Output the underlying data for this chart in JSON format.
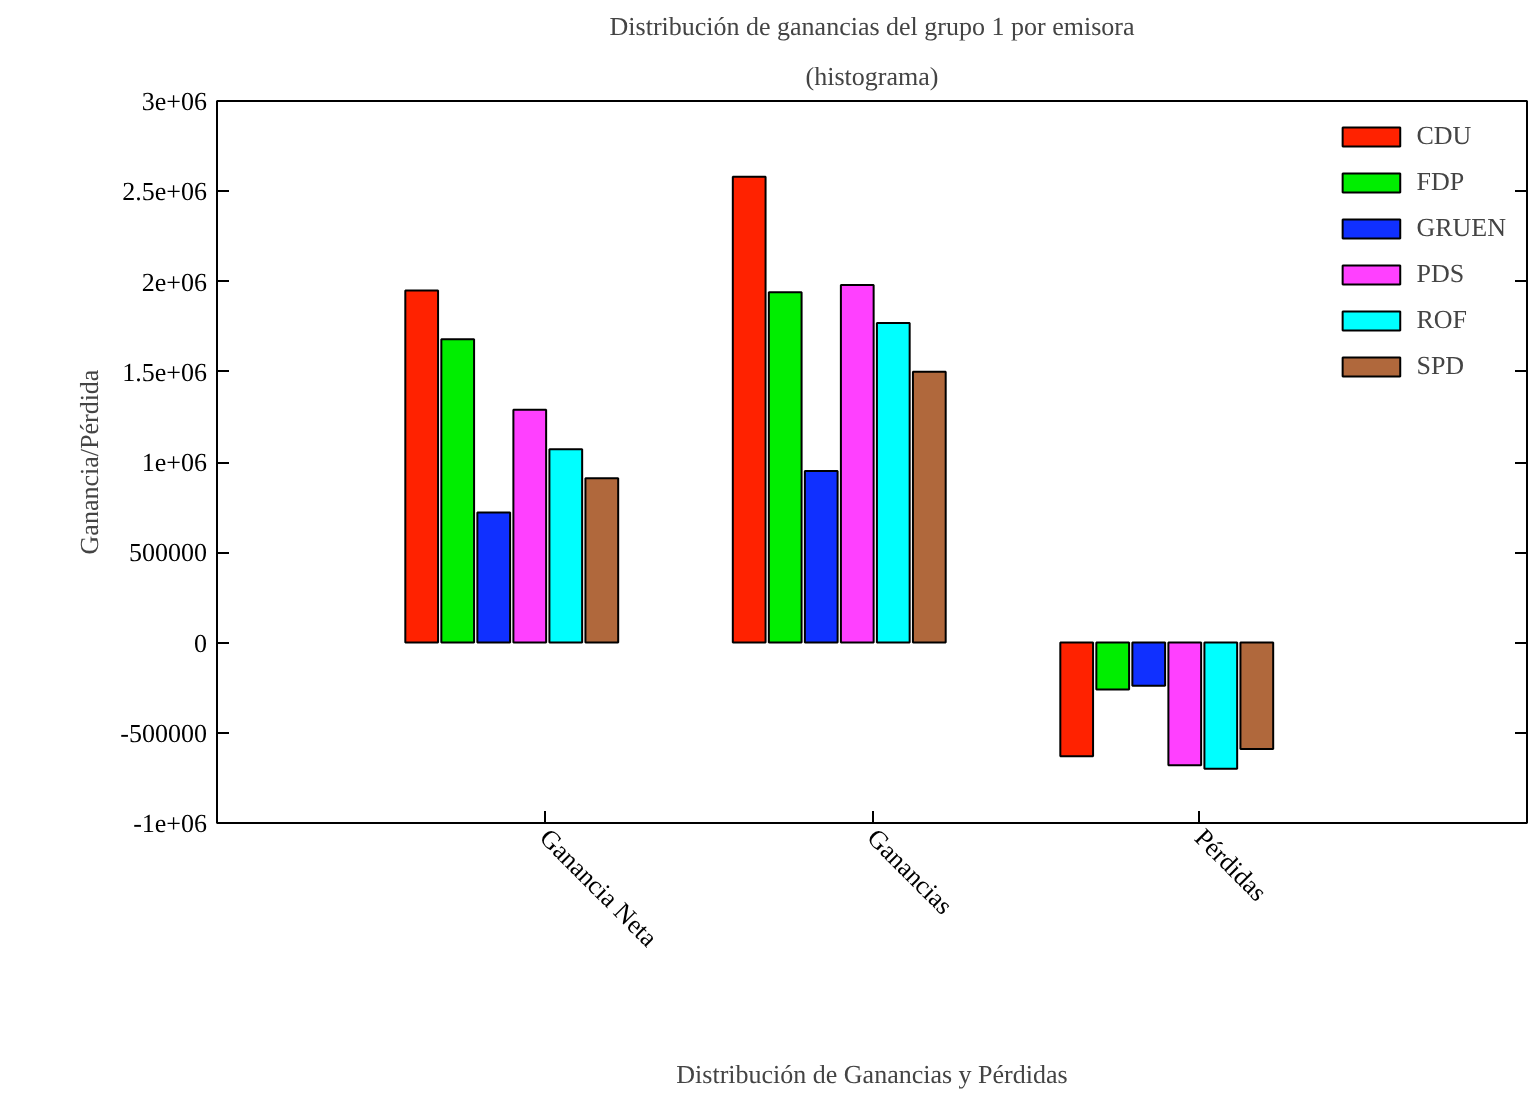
{
  "chart_data": {
    "type": "bar",
    "title": "Distribución de ganancias del grupo 1 por emisora",
    "subtitle": "(histograma)",
    "xlabel": "Distribución de Ganancias y Pérdidas",
    "ylabel": "Ganancia/Pérdida",
    "categories": [
      "Ganancia Neta",
      "Ganancias",
      "Pérdidas"
    ],
    "series": [
      {
        "name": "CDU",
        "color": "#ff2200",
        "values": [
          1950000,
          2580000,
          -630000
        ]
      },
      {
        "name": "FDP",
        "color": "#00ee00",
        "values": [
          1680000,
          1940000,
          -260000
        ]
      },
      {
        "name": "GRUEN",
        "color": "#1030ff",
        "values": [
          720000,
          950000,
          -240000
        ]
      },
      {
        "name": "PDS",
        "color": "#ff40ff",
        "values": [
          1290000,
          1980000,
          -680000
        ]
      },
      {
        "name": "ROF",
        "color": "#00ffff",
        "values": [
          1070000,
          1770000,
          -700000
        ]
      },
      {
        "name": "SPD",
        "color": "#b0683c",
        "values": [
          910000,
          1500000,
          -590000
        ]
      }
    ],
    "ylim": [
      -1000000,
      3000000
    ],
    "yticks": [
      {
        "value": -1000000,
        "label": "-1e+06"
      },
      -500000,
      0,
      500000,
      {
        "value": 1000000,
        "label": "1e+06"
      },
      {
        "value": 1500000,
        "label": "1.5e+06"
      },
      {
        "value": 2000000,
        "label": "2e+06"
      },
      {
        "value": 2500000,
        "label": "2.5e+06"
      },
      {
        "value": 3000000,
        "label": "3e+06"
      }
    ],
    "grid": false,
    "legend": "top right"
  }
}
